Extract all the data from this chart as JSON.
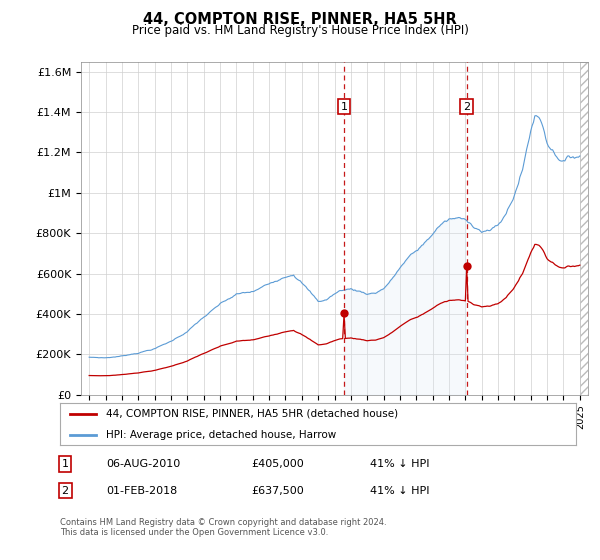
{
  "title": "44, COMPTON RISE, PINNER, HA5 5HR",
  "subtitle": "Price paid vs. HM Land Registry's House Price Index (HPI)",
  "hpi_label": "HPI: Average price, detached house, Harrow",
  "property_label": "44, COMPTON RISE, PINNER, HA5 5HR (detached house)",
  "hpi_color": "#5b9bd5",
  "property_color": "#c00000",
  "hpi_fill_color": "#dce9f5",
  "vline_color": "#c00000",
  "transaction1_date": "06-AUG-2010",
  "transaction1_price": 405000,
  "transaction1_hpi_diff": "41% ↓ HPI",
  "transaction2_date": "01-FEB-2018",
  "transaction2_price": 637500,
  "transaction2_hpi_diff": "41% ↓ HPI",
  "transaction1_year": 2010.583,
  "transaction2_year": 2018.083,
  "ylim": [
    0,
    1650000
  ],
  "xlim_start": 1994.5,
  "xlim_end": 2025.5,
  "footer": "Contains HM Land Registry data © Crown copyright and database right 2024.\nThis data is licensed under the Open Government Licence v3.0.",
  "background_color": "#ffffff",
  "grid_color": "#d0d0d0",
  "yticks": [
    0,
    200000,
    400000,
    600000,
    800000,
    1000000,
    1200000,
    1400000,
    1600000
  ],
  "ytick_labels": [
    "£0",
    "£200K",
    "£400K",
    "£600K",
    "£800K",
    "£1M",
    "£1.2M",
    "£1.4M",
    "£1.6M"
  ]
}
